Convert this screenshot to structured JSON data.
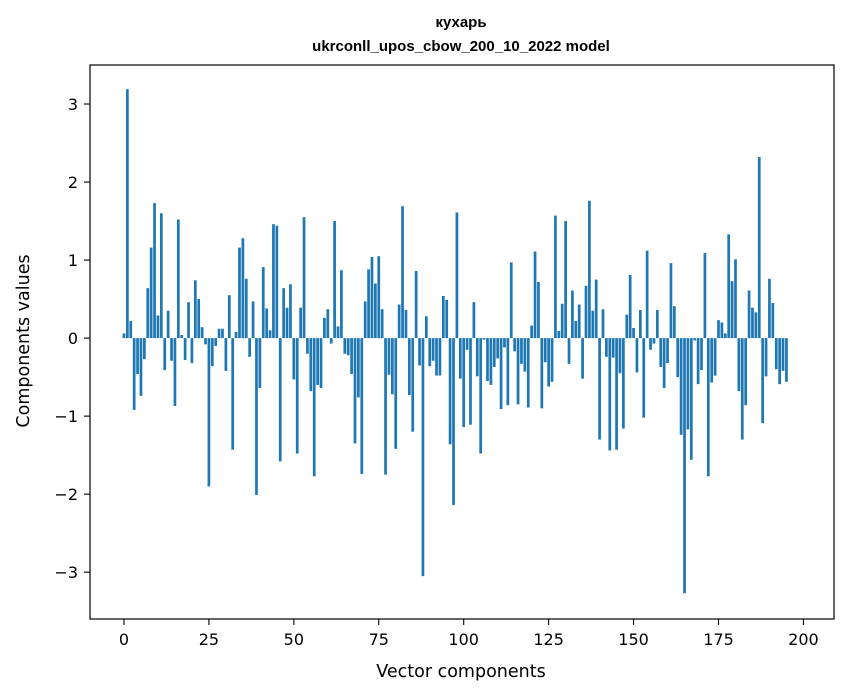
{
  "chart_data": {
    "type": "bar",
    "title_line1": "кухарь",
    "title_line2": "ukrconll_upos_cbow_200_10_2022 model",
    "xlabel": "Vector components",
    "ylabel": "Components values",
    "xlim": [
      -10,
      209
    ],
    "ylim": [
      -3.6,
      3.5
    ],
    "x_ticks": [
      0,
      25,
      50,
      75,
      100,
      125,
      150,
      175,
      200
    ],
    "x_tick_labels": [
      "0",
      "25",
      "50",
      "75",
      "100",
      "125",
      "150",
      "175",
      "200"
    ],
    "y_ticks": [
      -3,
      -2,
      -1,
      0,
      1,
      2,
      3
    ],
    "y_tick_labels": [
      "−3",
      "−2",
      "−1",
      "0",
      "1",
      "2",
      "3"
    ],
    "color": "#1f77b4",
    "grid": false,
    "values": [
      0.06,
      3.19,
      0.22,
      -0.92,
      -0.46,
      -0.74,
      -0.27,
      0.64,
      1.16,
      1.73,
      0.29,
      1.6,
      -0.41,
      0.35,
      -0.29,
      -0.87,
      1.52,
      0.04,
      -0.28,
      0.46,
      -0.32,
      0.74,
      0.5,
      0.14,
      -0.08,
      -1.9,
      -0.36,
      -0.1,
      0.12,
      0.12,
      -0.42,
      0.55,
      -1.43,
      0.08,
      1.16,
      1.28,
      0.76,
      -0.24,
      0.47,
      -2.01,
      -0.64,
      0.91,
      0.38,
      0.1,
      1.46,
      1.44,
      -1.58,
      0.64,
      0.39,
      0.69,
      -0.53,
      -1.48,
      0.39,
      1.55,
      -0.2,
      -0.68,
      -1.77,
      -0.6,
      -0.64,
      0.26,
      0.37,
      -0.07,
      1.5,
      0.15,
      0.87,
      -0.2,
      -0.22,
      -0.46,
      -1.35,
      -0.76,
      -1.74,
      0.47,
      0.88,
      1.04,
      0.7,
      1.05,
      0.37,
      -1.75,
      -0.47,
      -0.72,
      -1.42,
      0.43,
      1.69,
      0.36,
      -0.73,
      -1.2,
      0.86,
      -0.35,
      -3.05,
      0.28,
      -0.36,
      -0.29,
      -0.48,
      -0.48,
      0.54,
      0.49,
      -1.36,
      -2.14,
      1.61,
      -0.52,
      -1.14,
      -0.15,
      -1.11,
      0.46,
      -0.49,
      -1.48,
      -0.02,
      -0.55,
      -0.6,
      -0.37,
      -0.26,
      -0.91,
      -0.12,
      -0.86,
      0.97,
      -0.17,
      -0.85,
      -0.33,
      -0.43,
      -0.89,
      0.16,
      1.11,
      0.72,
      -0.9,
      -0.31,
      -0.62,
      -0.56,
      1.57,
      0.09,
      0.44,
      1.5,
      -0.33,
      0.61,
      0.22,
      0.43,
      -0.52,
      0.67,
      1.76,
      0.35,
      0.75,
      -1.3,
      0.37,
      -0.24,
      -1.44,
      -0.25,
      -1.43,
      -0.45,
      -1.16,
      0.3,
      0.81,
      0.13,
      -0.44,
      0.36,
      -1.02,
      1.12,
      -0.15,
      -0.07,
      0.36,
      -0.37,
      -0.64,
      -0.32,
      0.96,
      0.41,
      -0.5,
      -1.24,
      -3.27,
      -1.17,
      -1.56,
      -0.03,
      -0.59,
      -0.41,
      1.09,
      -1.77,
      -0.57,
      -0.48,
      0.23,
      0.2,
      0.06,
      1.33,
      0.73,
      1.01,
      -0.68,
      -1.3,
      -0.86,
      0.61,
      0.39,
      0.33,
      2.32,
      -1.09,
      -0.49,
      0.76,
      0.45,
      -0.4,
      -0.59,
      -0.42,
      -0.56
    ]
  }
}
